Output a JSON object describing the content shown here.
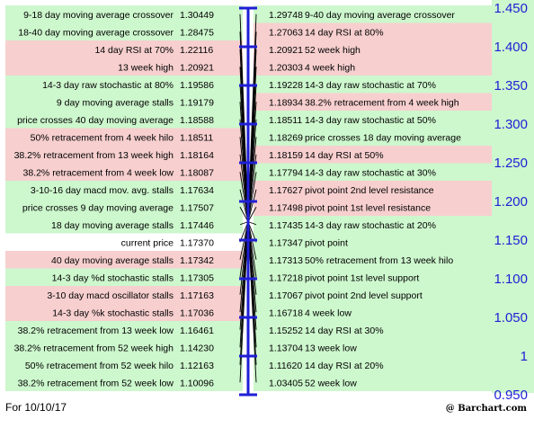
{
  "footer": {
    "date": "For 10/10/17",
    "brand": "@ Barchart.com"
  },
  "colors": {
    "green": "#cdf7cd",
    "red": "#f7cfcf",
    "white": "#ffffff",
    "axis": "#1f1fd6",
    "line": "#000000"
  },
  "chart_data": {
    "type": "table",
    "current_price": 1.1737,
    "axis": {
      "ticks": [
        "1.450",
        "1.400",
        "1.350",
        "1.300",
        "1.250",
        "1.200",
        "1.150",
        "1.100",
        "1.050",
        "1",
        "0.950"
      ],
      "min": 0.95,
      "max": 1.45
    },
    "left": [
      {
        "label": "9-18 day moving average crossover",
        "value": "1.30449",
        "color": "green"
      },
      {
        "label": "18-40 day moving average crossover",
        "value": "1.28475",
        "color": "green"
      },
      {
        "label": "14 day RSI at 70%",
        "value": "1.22116",
        "color": "red"
      },
      {
        "label": "13 week high",
        "value": "1.20921",
        "color": "red"
      },
      {
        "label": "14-3 day raw stochastic at 80%",
        "value": "1.19586",
        "color": "green"
      },
      {
        "label": "9 day moving average stalls",
        "value": "1.19179",
        "color": "green"
      },
      {
        "label": "price crosses 40 day moving average",
        "value": "1.18588",
        "color": "green"
      },
      {
        "label": "50% retracement from 4 week hilo",
        "value": "1.18511",
        "color": "red"
      },
      {
        "label": "38.2% retracement from 13 week high",
        "value": "1.18164",
        "color": "red"
      },
      {
        "label": "38.2% retracement from 4 week low",
        "value": "1.18087",
        "color": "red"
      },
      {
        "label": "3-10-16 day macd mov. avg. stalls",
        "value": "1.17634",
        "color": "green"
      },
      {
        "label": "price crosses 9 day moving average",
        "value": "1.17507",
        "color": "green"
      },
      {
        "label": "18 day moving average stalls",
        "value": "1.17446",
        "color": "green"
      },
      {
        "label": "current price",
        "value": "1.17370",
        "color": "white"
      },
      {
        "label": "40 day moving average stalls",
        "value": "1.17342",
        "color": "red"
      },
      {
        "label": "14-3 day %d stochastic stalls",
        "value": "1.17305",
        "color": "green"
      },
      {
        "label": "3-10 day macd oscillator stalls",
        "value": "1.17163",
        "color": "red"
      },
      {
        "label": "14-3 day %k stochastic stalls",
        "value": "1.17036",
        "color": "red"
      },
      {
        "label": "38.2% retracement from 13 week low",
        "value": "1.16461",
        "color": "green"
      },
      {
        "label": "38.2% retracement from 52 week high",
        "value": "1.14230",
        "color": "green"
      },
      {
        "label": "50% retracement from 52 week hilo",
        "value": "1.12163",
        "color": "green"
      },
      {
        "label": "38.2% retracement from 52 week low",
        "value": "1.10096",
        "color": "green"
      }
    ],
    "right": [
      {
        "label": "9-40 day moving average crossover",
        "value": "1.29748",
        "color": "green"
      },
      {
        "label": "14 day RSI at 80%",
        "value": "1.27063",
        "color": "red"
      },
      {
        "label": "52 week high",
        "value": "1.20921",
        "color": "red"
      },
      {
        "label": "4 week high",
        "value": "1.20303",
        "color": "red"
      },
      {
        "label": "14-3 day raw stochastic at 70%",
        "value": "1.19228",
        "color": "green"
      },
      {
        "label": "38.2% retracement from 4 week high",
        "value": "1.18934",
        "color": "red"
      },
      {
        "label": "14-3 day raw stochastic at 50%",
        "value": "1.18511",
        "color": "green"
      },
      {
        "label": "price crosses 18 day moving average",
        "value": "1.18269",
        "color": "green"
      },
      {
        "label": "14 day RSI at 50%",
        "value": "1.18159",
        "color": "red"
      },
      {
        "label": "14-3 day raw stochastic at 30%",
        "value": "1.17794",
        "color": "green"
      },
      {
        "label": "pivot point 2nd level resistance",
        "value": "1.17627",
        "color": "red"
      },
      {
        "label": "pivot point 1st level resistance",
        "value": "1.17498",
        "color": "red"
      },
      {
        "label": "14-3 day raw stochastic at 20%",
        "value": "1.17435",
        "color": "green"
      },
      {
        "label": "pivot point",
        "value": "1.17347",
        "color": "green"
      },
      {
        "label": "50% retracement from 13 week hilo",
        "value": "1.17313",
        "color": "green"
      },
      {
        "label": "pivot point 1st level support",
        "value": "1.17218",
        "color": "green"
      },
      {
        "label": "pivot point 2nd level support",
        "value": "1.17067",
        "color": "green"
      },
      {
        "label": "4 week low",
        "value": "1.16718",
        "color": "green"
      },
      {
        "label": "14 day RSI at 30%",
        "value": "1.15252",
        "color": "green"
      },
      {
        "label": "13 week low",
        "value": "1.13704",
        "color": "green"
      },
      {
        "label": "14 day RSI at 20%",
        "value": "1.11620",
        "color": "green"
      },
      {
        "label": "52 week low",
        "value": "1.03405",
        "color": "green"
      }
    ]
  }
}
